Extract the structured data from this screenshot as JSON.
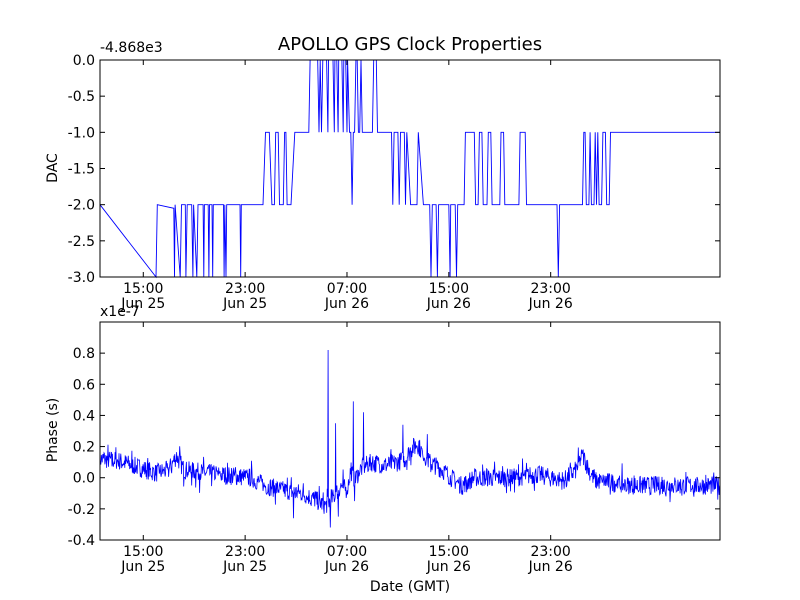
{
  "figure": {
    "title": "APOLLO GPS Clock Properties"
  },
  "chart_data": [
    {
      "type": "line",
      "title": "APOLLO GPS Clock Properties",
      "xlabel": "",
      "ylabel": "DAC",
      "offset_label": "-4.868e3",
      "line_color": "#0000ff",
      "xlim": [
        11.6,
        60.3
      ],
      "x_units": "hours since Jun 25 00:00 GMT",
      "ylim": [
        -3.0,
        0.0
      ],
      "yticks": [
        0.0,
        -0.5,
        -1.0,
        -1.5,
        -2.0,
        -2.5,
        -3.0
      ],
      "ytick_labels": [
        "0.0",
        "-0.5",
        "-1.0",
        "-1.5",
        "-2.0",
        "-2.5",
        "-3.0"
      ],
      "xticks": [
        15,
        23,
        31,
        39,
        47
      ],
      "xtick_labels": [
        {
          "time": "15:00",
          "date": "Jun 25"
        },
        {
          "time": "23:00",
          "date": "Jun 25"
        },
        {
          "time": "07:00",
          "date": "Jun 26"
        },
        {
          "time": "15:00",
          "date": "Jun 26"
        },
        {
          "time": "23:00",
          "date": "Jun 26"
        }
      ],
      "series": [
        {
          "name": "DAC",
          "segments": [
            [
              11.6,
              -2
            ],
            [
              16.0,
              -3
            ],
            [
              16.1,
              -2
            ],
            [
              17.4,
              -2.05
            ],
            [
              17.45,
              -3
            ],
            [
              17.5,
              -2
            ],
            [
              17.9,
              -3
            ],
            [
              18.0,
              -2
            ],
            [
              18.3,
              -2
            ],
            [
              18.35,
              -3
            ],
            [
              18.45,
              -2
            ],
            [
              18.8,
              -2
            ],
            [
              18.9,
              -3
            ],
            [
              18.95,
              -2
            ],
            [
              19.2,
              -3
            ],
            [
              19.3,
              -2
            ],
            [
              19.7,
              -2
            ],
            [
              19.75,
              -3
            ],
            [
              19.8,
              -2
            ],
            [
              20.1,
              -2
            ],
            [
              20.15,
              -3
            ],
            [
              20.2,
              -2
            ],
            [
              20.4,
              -2
            ],
            [
              20.45,
              -3
            ],
            [
              20.5,
              -2
            ],
            [
              21.3,
              -2
            ],
            [
              21.35,
              -3
            ],
            [
              21.4,
              -2
            ],
            [
              21.5,
              -3
            ],
            [
              21.55,
              -2
            ],
            [
              22.0,
              -2
            ],
            [
              22.6,
              -2
            ],
            [
              22.65,
              -3
            ],
            [
              22.7,
              -2
            ],
            [
              23.0,
              -2
            ],
            [
              24.0,
              -2
            ],
            [
              24.4,
              -2
            ],
            [
              24.6,
              -1
            ],
            [
              24.9,
              -1
            ],
            [
              25.1,
              -2
            ],
            [
              25.3,
              -2
            ],
            [
              25.4,
              -1
            ],
            [
              25.6,
              -1
            ],
            [
              25.7,
              -2
            ],
            [
              26.0,
              -2
            ],
            [
              26.1,
              -1
            ],
            [
              26.2,
              -1
            ],
            [
              26.3,
              -2
            ],
            [
              26.6,
              -2
            ],
            [
              26.9,
              -1
            ],
            [
              28.0,
              -1
            ],
            [
              28.1,
              0
            ],
            [
              28.7,
              0
            ],
            [
              28.8,
              -1
            ],
            [
              28.9,
              0
            ],
            [
              29.0,
              -1
            ],
            [
              29.1,
              0
            ],
            [
              29.4,
              0
            ],
            [
              29.5,
              -1
            ],
            [
              29.55,
              0
            ],
            [
              29.9,
              0
            ],
            [
              30.0,
              -1
            ],
            [
              30.05,
              0
            ],
            [
              30.2,
              0
            ],
            [
              30.3,
              -1
            ],
            [
              30.35,
              0
            ],
            [
              30.6,
              0
            ],
            [
              30.7,
              -1
            ],
            [
              30.75,
              0
            ],
            [
              30.9,
              0
            ],
            [
              31.0,
              -1
            ],
            [
              31.05,
              0
            ],
            [
              31.2,
              -1
            ],
            [
              31.3,
              -1
            ],
            [
              31.4,
              -2
            ],
            [
              31.5,
              -1
            ],
            [
              31.6,
              -1
            ],
            [
              31.7,
              0
            ],
            [
              31.8,
              0
            ],
            [
              31.9,
              -1
            ],
            [
              32.0,
              -1
            ],
            [
              32.1,
              0
            ],
            [
              32.2,
              -1
            ],
            [
              33.0,
              -1
            ],
            [
              33.1,
              0
            ],
            [
              33.3,
              0
            ],
            [
              33.4,
              -1
            ],
            [
              34.5,
              -1
            ],
            [
              34.6,
              -2
            ],
            [
              34.7,
              -1
            ],
            [
              35.0,
              -1
            ],
            [
              35.1,
              -2
            ],
            [
              35.2,
              -1
            ],
            [
              35.5,
              -1
            ],
            [
              35.6,
              -2
            ],
            [
              35.7,
              -1
            ],
            [
              36.0,
              -2
            ],
            [
              36.5,
              -2
            ],
            [
              36.6,
              -1
            ],
            [
              37.0,
              -2
            ],
            [
              37.5,
              -2
            ],
            [
              37.6,
              -3
            ],
            [
              37.7,
              -2
            ],
            [
              38.0,
              -2
            ],
            [
              38.1,
              -3
            ],
            [
              38.2,
              -2
            ],
            [
              39.0,
              -2
            ],
            [
              39.1,
              -3
            ],
            [
              39.15,
              -2
            ],
            [
              39.5,
              -2
            ],
            [
              39.6,
              -3
            ],
            [
              39.7,
              -2
            ],
            [
              40.0,
              -2
            ],
            [
              40.2,
              -2
            ],
            [
              40.3,
              -1
            ],
            [
              41.0,
              -1
            ],
            [
              41.1,
              -2
            ],
            [
              41.3,
              -2
            ],
            [
              41.4,
              -1
            ],
            [
              41.6,
              -1
            ],
            [
              41.7,
              -2
            ],
            [
              42.0,
              -2
            ],
            [
              42.1,
              -1
            ],
            [
              42.3,
              -1
            ],
            [
              42.4,
              -2
            ],
            [
              43.0,
              -2
            ],
            [
              43.1,
              -1
            ],
            [
              43.3,
              -1
            ],
            [
              43.4,
              -2
            ],
            [
              44.0,
              -2
            ],
            [
              44.5,
              -2
            ],
            [
              44.6,
              -1
            ],
            [
              45.0,
              -1
            ],
            [
              45.1,
              -2
            ],
            [
              46.0,
              -2
            ],
            [
              47.0,
              -2
            ],
            [
              47.5,
              -2
            ],
            [
              47.6,
              -3
            ],
            [
              47.7,
              -2
            ],
            [
              48.0,
              -2
            ],
            [
              49.0,
              -2
            ],
            [
              49.5,
              -2
            ],
            [
              49.6,
              -1
            ],
            [
              49.7,
              -1
            ],
            [
              49.8,
              -2
            ],
            [
              50.0,
              -2
            ],
            [
              50.1,
              -1
            ],
            [
              50.2,
              -2
            ],
            [
              50.4,
              -2
            ],
            [
              50.5,
              -1
            ],
            [
              50.6,
              -2
            ],
            [
              50.7,
              -1
            ],
            [
              50.8,
              -2
            ],
            [
              51.0,
              -2
            ],
            [
              51.1,
              -1
            ],
            [
              51.3,
              -1
            ],
            [
              51.4,
              -2
            ],
            [
              51.6,
              -2
            ],
            [
              51.7,
              -1
            ],
            [
              60.3,
              -1
            ]
          ]
        }
      ]
    },
    {
      "type": "line",
      "title": "",
      "xlabel": "Date (GMT)",
      "ylabel": "Phase (s)",
      "offset_label": "x1e-7",
      "line_color": "#0000ff",
      "xlim": [
        11.6,
        60.3
      ],
      "x_units": "hours since Jun 25 00:00 GMT",
      "ylim": [
        -0.4,
        1.0
      ],
      "yticks": [
        0.8,
        0.6,
        0.4,
        0.2,
        0.0,
        -0.2,
        -0.4
      ],
      "ytick_labels": [
        "0.8",
        "0.6",
        "0.4",
        "0.2",
        "0.0",
        "-0.2",
        "-0.4"
      ],
      "xticks": [
        15,
        23,
        31,
        39,
        47
      ],
      "xtick_labels": [
        {
          "time": "15:00",
          "date": "Jun 25"
        },
        {
          "time": "23:00",
          "date": "Jun 25"
        },
        {
          "time": "07:00",
          "date": "Jun 26"
        },
        {
          "time": "15:00",
          "date": "Jun 26"
        },
        {
          "time": "23:00",
          "date": "Jun 26"
        }
      ],
      "series": [
        {
          "name": "Phase",
          "trend": [
            [
              11.6,
              0.12
            ],
            [
              13.0,
              0.11
            ],
            [
              14.5,
              0.07
            ],
            [
              16.0,
              0.03
            ],
            [
              17.0,
              0.05
            ],
            [
              17.6,
              0.14
            ],
            [
              18.2,
              0.05
            ],
            [
              20.0,
              0.03
            ],
            [
              22.0,
              0.01
            ],
            [
              23.5,
              0.0
            ],
            [
              24.5,
              -0.05
            ],
            [
              26.0,
              -0.08
            ],
            [
              27.5,
              -0.1
            ],
            [
              28.5,
              -0.14
            ],
            [
              29.3,
              -0.18
            ],
            [
              30.0,
              -0.12
            ],
            [
              30.5,
              -0.05
            ],
            [
              31.0,
              -0.08
            ],
            [
              31.3,
              0.05
            ],
            [
              31.6,
              -0.02
            ],
            [
              32.0,
              0.05
            ],
            [
              32.5,
              0.08
            ],
            [
              33.0,
              0.1
            ],
            [
              34.0,
              0.08
            ],
            [
              35.0,
              0.1
            ],
            [
              35.6,
              0.12
            ],
            [
              36.0,
              0.18
            ],
            [
              36.5,
              0.22
            ],
            [
              37.0,
              0.15
            ],
            [
              37.5,
              0.1
            ],
            [
              38.5,
              0.05
            ],
            [
              39.5,
              -0.02
            ],
            [
              40.0,
              -0.05
            ],
            [
              41.0,
              0.0
            ],
            [
              42.0,
              0.0
            ],
            [
              44.0,
              0.0
            ],
            [
              46.0,
              0.02
            ],
            [
              47.0,
              0.0
            ],
            [
              48.0,
              -0.02
            ],
            [
              49.0,
              0.05
            ],
            [
              49.5,
              0.15
            ],
            [
              50.0,
              0.05
            ],
            [
              50.5,
              -0.02
            ],
            [
              52.0,
              -0.03
            ],
            [
              53.0,
              -0.05
            ],
            [
              60.3,
              -0.05
            ]
          ],
          "spikes": [
            [
              29.5,
              0.82
            ],
            [
              29.7,
              -0.32
            ],
            [
              31.5,
              0.49
            ],
            [
              31.6,
              -0.15
            ],
            [
              32.3,
              0.42
            ],
            [
              35.4,
              0.34
            ],
            [
              37.3,
              0.28
            ],
            [
              30.1,
              0.35
            ],
            [
              30.3,
              -0.25
            ],
            [
              26.8,
              -0.26
            ]
          ],
          "noise_amplitude": 0.06
        }
      ]
    }
  ]
}
